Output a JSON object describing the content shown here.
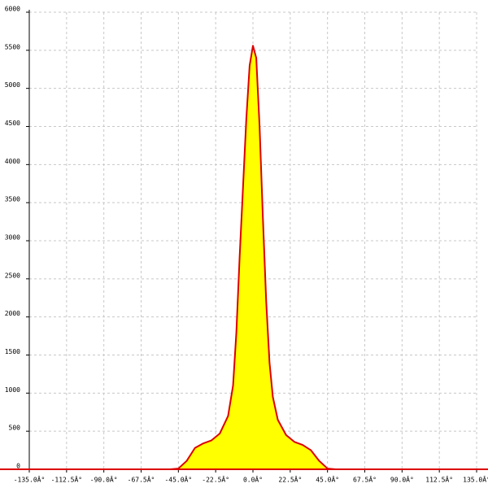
{
  "chart_data": {
    "type": "area",
    "x": [
      -135,
      -50,
      -45,
      -40,
      -35,
      -30,
      -25,
      -20,
      -15,
      -12,
      -10,
      -8,
      -6,
      -4,
      -2,
      0,
      2,
      4,
      6,
      8,
      10,
      12,
      15,
      20,
      25,
      30,
      35,
      40,
      45,
      50,
      135
    ],
    "values": [
      0,
      0,
      10,
      110,
      280,
      340,
      380,
      470,
      700,
      1100,
      1800,
      2800,
      3700,
      4600,
      5300,
      5560,
      5400,
      4500,
      3300,
      2200,
      1400,
      950,
      650,
      450,
      360,
      320,
      250,
      110,
      10,
      0,
      0
    ],
    "color": "#dd0000",
    "fill": "#ffff00",
    "xlim": [
      -135,
      135
    ],
    "xticks": [
      {
        "value": -135,
        "label": "-135.0Â°"
      },
      {
        "value": -112.5,
        "label": "-112.5Â°"
      },
      {
        "value": -90,
        "label": "-90.0Â°"
      },
      {
        "value": -67.5,
        "label": "-67.5Â°"
      },
      {
        "value": -45,
        "label": "-45.0Â°"
      },
      {
        "value": -22.5,
        "label": "-22.5Â°"
      },
      {
        "value": 0,
        "label": "0.0Â°"
      },
      {
        "value": 22.5,
        "label": "22.5Â°"
      },
      {
        "value": 45,
        "label": "45.0Â°"
      },
      {
        "value": 67.5,
        "label": "67.5Â°"
      },
      {
        "value": 90,
        "label": "90.0Â°"
      },
      {
        "value": 112.5,
        "label": "112.5Â°"
      },
      {
        "value": 135,
        "label": "135.0Â°"
      }
    ],
    "ylim": [
      0,
      6000
    ],
    "yticks": [
      0,
      500,
      1000,
      1500,
      2000,
      2500,
      3000,
      3500,
      4000,
      4500,
      5000,
      5500,
      6000
    ],
    "grid": true
  }
}
